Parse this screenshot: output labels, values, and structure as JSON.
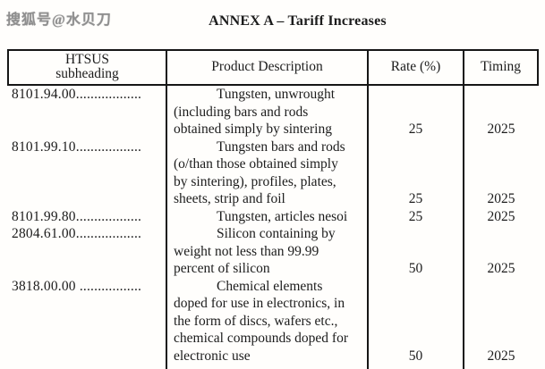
{
  "watermark": "搜狐号@水贝刀",
  "title": "ANNEX A – Tariff Increases",
  "colors": {
    "text": "#1c1c1c",
    "border": "#161616",
    "watermark": "#8f8f8f",
    "background": "#fffefc"
  },
  "table": {
    "headers": [
      "HTSUS\nsubheading",
      "Product Description",
      "Rate (%)",
      "Timing"
    ],
    "rows": [
      {
        "subheading": "8101.94.00..................",
        "description": "Tungsten, unwrought\n(including bars and rods\nobtained simply by sintering",
        "rate": "25",
        "timing": "2025"
      },
      {
        "subheading": "8101.99.10..................",
        "description": "Tungsten bars and rods\n(o/than those obtained simply\nby sintering), profiles, plates,\nsheets, strip and foil",
        "rate": "25",
        "timing": "2025"
      },
      {
        "subheading": "8101.99.80..................",
        "description": "Tungsten, articles nesoi",
        "rate": "25",
        "timing": "2025"
      },
      {
        "subheading": "2804.61.00..................",
        "description": "Silicon containing by\nweight not less than 99.99\npercent of silicon",
        "rate": "50",
        "timing": "2025"
      },
      {
        "subheading": "3818.00.00 .................",
        "description": "Chemical elements\ndoped for use in electronics, in\nthe form of discs, wafers etc.,\nchemical compounds doped for\nelectronic use",
        "rate": "50",
        "timing": "2025"
      }
    ]
  }
}
